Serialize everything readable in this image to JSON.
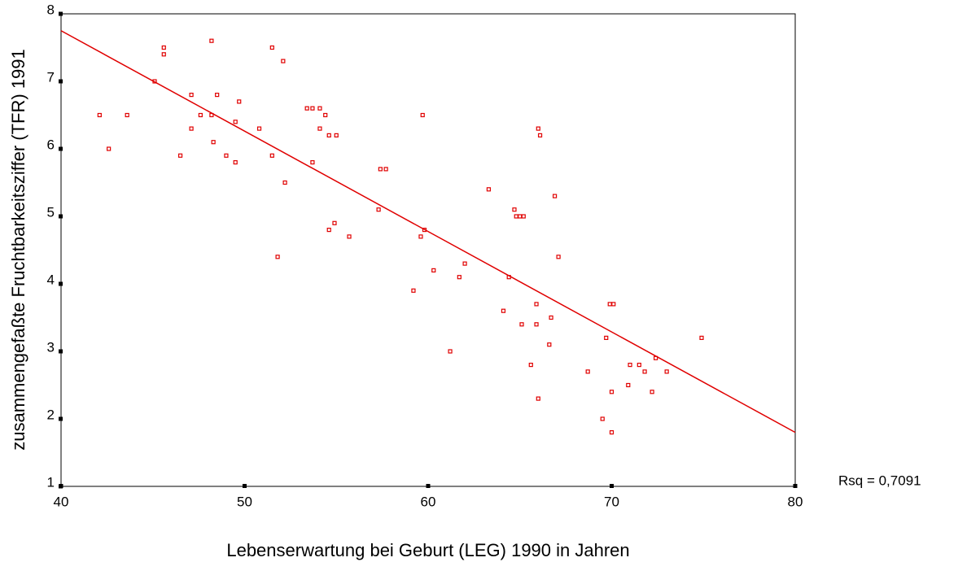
{
  "chart_data": {
    "type": "scatter",
    "xlabel": "Lebenserwartung bei Geburt (LEG) 1990 in Jahren",
    "ylabel": "zusammengefaßte Fruchtbarkeitsziffer (TFR) 1991",
    "annotation": "Rsq = 0,7091",
    "xlim": [
      40,
      80
    ],
    "xticks": [
      40,
      50,
      60,
      70,
      80
    ],
    "ylim": [
      1,
      8
    ],
    "yticks": [
      1,
      2,
      3,
      4,
      5,
      6,
      7,
      8
    ],
    "color": "#e00000",
    "x": [
      42.1,
      42.6,
      43.6,
      45.1,
      45.6,
      45.6,
      46.5,
      47.1,
      47.1,
      47.6,
      48.2,
      48.2,
      48.3,
      48.5,
      49.0,
      49.5,
      49.5,
      49.7,
      50.8,
      51.5,
      51.5,
      51.8,
      52.1,
      52.2,
      53.4,
      53.7,
      54.1,
      53.7,
      54.1,
      54.4,
      54.6,
      55.0,
      54.6,
      54.9,
      55.7,
      57.3,
      57.4,
      57.7,
      59.2,
      59.6,
      59.7,
      59.8,
      60.3,
      61.2,
      61.7,
      62.0,
      63.3,
      64.1,
      64.4,
      64.7,
      64.8,
      65.0,
      65.2,
      65.1,
      65.6,
      65.9,
      65.9,
      66.0,
      66.1,
      66.0,
      66.6,
      66.7,
      66.9,
      67.1,
      68.7,
      69.5,
      69.7,
      69.9,
      70.1,
      70.0,
      70.0,
      70.9,
      71.0,
      71.5,
      71.8,
      72.2,
      72.4,
      73.0,
      74.9
    ],
    "y": [
      6.5,
      6.0,
      6.5,
      7.0,
      7.5,
      7.4,
      5.9,
      6.8,
      6.3,
      6.5,
      7.6,
      6.5,
      6.1,
      6.8,
      5.9,
      5.8,
      6.4,
      6.7,
      6.3,
      7.5,
      5.9,
      4.4,
      7.3,
      5.5,
      6.6,
      6.6,
      6.6,
      5.8,
      6.3,
      6.5,
      6.2,
      6.2,
      4.8,
      4.9,
      4.7,
      5.1,
      5.7,
      5.7,
      3.9,
      4.7,
      6.5,
      4.8,
      4.2,
      3.0,
      4.1,
      4.3,
      5.4,
      3.6,
      4.1,
      5.1,
      5.0,
      5.0,
      5.0,
      3.4,
      2.8,
      3.4,
      3.7,
      6.3,
      6.2,
      2.3,
      3.1,
      3.5,
      5.3,
      4.4,
      2.7,
      2.0,
      3.2,
      3.7,
      3.7,
      1.8,
      2.4,
      2.5,
      2.8,
      2.8,
      2.7,
      2.4,
      2.9,
      2.7,
      3.2
    ],
    "fit_line": {
      "x": [
        40,
        80
      ],
      "y": [
        7.75,
        1.8
      ]
    }
  }
}
